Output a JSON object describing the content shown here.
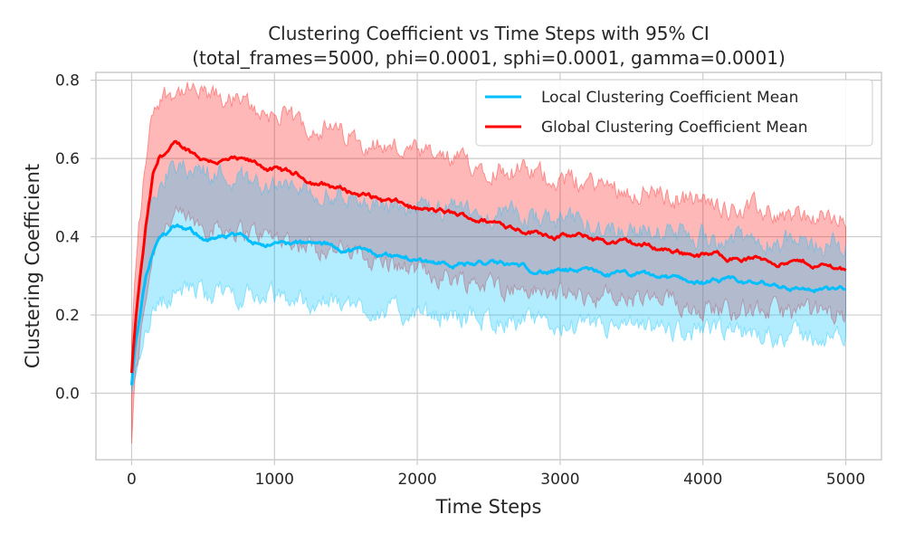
{
  "chart_data": {
    "type": "line",
    "title": "Clustering Coefficient vs Time Steps with 95% CI",
    "subtitle": "(total_frames=5000, phi=0.0001, sphi=0.0001, gamma=0.0001)",
    "xlabel": "Time Steps",
    "ylabel": "Clustering Coefficient",
    "xlim": [
      -250,
      5250
    ],
    "ylim": [
      -0.17,
      0.82
    ],
    "xticks": [
      0,
      1000,
      2000,
      3000,
      4000,
      5000
    ],
    "yticks": [
      0.0,
      0.2,
      0.4,
      0.6,
      0.8
    ],
    "xtick_labels": [
      "0",
      "1000",
      "2000",
      "3000",
      "4000",
      "5000"
    ],
    "ytick_labels": [
      "0.0",
      "0.2",
      "0.4",
      "0.6",
      "0.8"
    ],
    "grid": true,
    "legend_position": "top-right",
    "series": [
      {
        "name": "Local Clustering Coefficient Mean",
        "color": "#00bfff",
        "x": [
          0,
          25,
          50,
          100,
          150,
          200,
          300,
          400,
          500,
          700,
          1000,
          1500,
          2000,
          2500,
          3000,
          3500,
          4000,
          4500,
          5000
        ],
        "mean": [
          0.02,
          0.12,
          0.18,
          0.3,
          0.37,
          0.4,
          0.42,
          0.41,
          0.4,
          0.395,
          0.385,
          0.37,
          0.34,
          0.33,
          0.31,
          0.3,
          0.285,
          0.275,
          0.26
        ],
        "lower": [
          -0.02,
          0.06,
          0.1,
          0.17,
          0.21,
          0.23,
          0.26,
          0.265,
          0.26,
          0.255,
          0.245,
          0.225,
          0.2,
          0.19,
          0.17,
          0.165,
          0.155,
          0.15,
          0.14
        ],
        "upper": [
          0.06,
          0.18,
          0.26,
          0.42,
          0.52,
          0.55,
          0.575,
          0.58,
          0.57,
          0.555,
          0.53,
          0.5,
          0.47,
          0.46,
          0.44,
          0.42,
          0.4,
          0.39,
          0.375
        ]
      },
      {
        "name": "Global Clustering Coefficient Mean",
        "color": "#ff0000",
        "x": [
          0,
          25,
          50,
          100,
          150,
          200,
          300,
          400,
          500,
          700,
          1000,
          1500,
          2000,
          2500,
          3000,
          3500,
          4000,
          4500,
          5000
        ],
        "mean": [
          0.05,
          0.17,
          0.26,
          0.42,
          0.55,
          0.6,
          0.63,
          0.62,
          0.6,
          0.595,
          0.57,
          0.52,
          0.47,
          0.44,
          0.405,
          0.38,
          0.355,
          0.34,
          0.32
        ],
        "lower": [
          -0.12,
          0.03,
          0.1,
          0.25,
          0.36,
          0.42,
          0.45,
          0.44,
          0.43,
          0.42,
          0.4,
          0.36,
          0.31,
          0.28,
          0.25,
          0.24,
          0.22,
          0.21,
          0.2
        ],
        "upper": [
          0.12,
          0.3,
          0.42,
          0.6,
          0.72,
          0.76,
          0.775,
          0.77,
          0.76,
          0.75,
          0.71,
          0.66,
          0.61,
          0.58,
          0.55,
          0.52,
          0.49,
          0.46,
          0.44
        ]
      }
    ]
  }
}
